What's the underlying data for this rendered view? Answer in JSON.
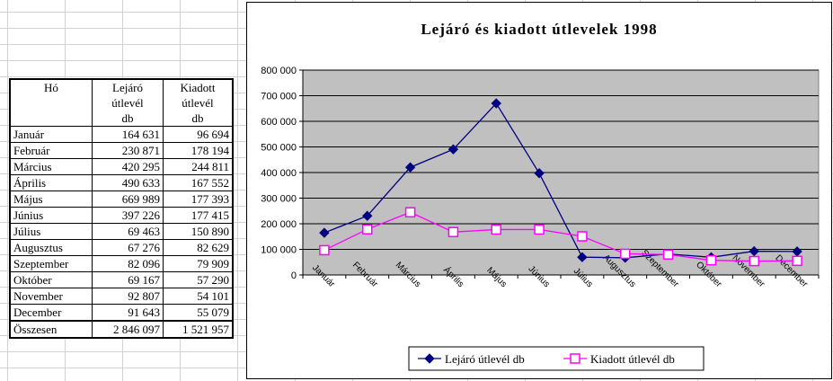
{
  "table": {
    "headers": [
      {
        "lines": [
          "Hó"
        ]
      },
      {
        "lines": [
          "Lejáró",
          "útlevél",
          "db"
        ]
      },
      {
        "lines": [
          "Kiadott",
          "útlevél",
          "db"
        ]
      }
    ],
    "rows": [
      {
        "month": "Január",
        "lejaro": "164 631",
        "kiadott": "96 694"
      },
      {
        "month": "Február",
        "lejaro": "230 871",
        "kiadott": "178 194"
      },
      {
        "month": "Március",
        "lejaro": "420 295",
        "kiadott": "244 811"
      },
      {
        "month": "Április",
        "lejaro": "490 633",
        "kiadott": "167 552"
      },
      {
        "month": "Május",
        "lejaro": "669 989",
        "kiadott": "177 393"
      },
      {
        "month": "Június",
        "lejaro": "397 226",
        "kiadott": "177 415"
      },
      {
        "month": "Július",
        "lejaro": "69 463",
        "kiadott": "150 890"
      },
      {
        "month": "Augusztus",
        "lejaro": "67 276",
        "kiadott": "82 629"
      },
      {
        "month": "Szeptember",
        "lejaro": "82 096",
        "kiadott": "79 909"
      },
      {
        "month": "Október",
        "lejaro": "69 167",
        "kiadott": "57 290"
      },
      {
        "month": "November",
        "lejaro": "92 807",
        "kiadott": "54 101"
      },
      {
        "month": "December",
        "lejaro": "91 643",
        "kiadott": "55 079"
      }
    ],
    "total": {
      "label": "Összesen",
      "lejaro": "2 846 097",
      "kiadott": "1 521 957"
    }
  },
  "chart_data": {
    "type": "line",
    "title": "Lejáró és kiadott útlevelek 1998",
    "categories": [
      "Január",
      "Február",
      "Március",
      "Április",
      "Május",
      "Június",
      "Július",
      "Augusztus",
      "Szeptember",
      "Október",
      "November",
      "December"
    ],
    "ylim": [
      0,
      800000
    ],
    "yticks": [
      0,
      100000,
      200000,
      300000,
      400000,
      500000,
      600000,
      700000,
      800000
    ],
    "ytick_labels": [
      "0",
      "100 000",
      "200 000",
      "300 000",
      "400 000",
      "500 000",
      "600 000",
      "700 000",
      "800 000"
    ],
    "grid": true,
    "legend_position": "bottom",
    "plot_background": "#c0c0c0",
    "series": [
      {
        "name": "Lejáró útlevél db",
        "color": "#000080",
        "marker": "diamond",
        "values": [
          164631,
          230871,
          420295,
          490633,
          669989,
          397226,
          69463,
          67276,
          82096,
          69167,
          92807,
          91643
        ]
      },
      {
        "name": "Kiadott útlevél db",
        "color": "#ff00ff",
        "marker": "square",
        "values": [
          96694,
          178194,
          244811,
          167552,
          177393,
          177415,
          150890,
          82629,
          79909,
          57290,
          54101,
          55079
        ]
      }
    ]
  }
}
